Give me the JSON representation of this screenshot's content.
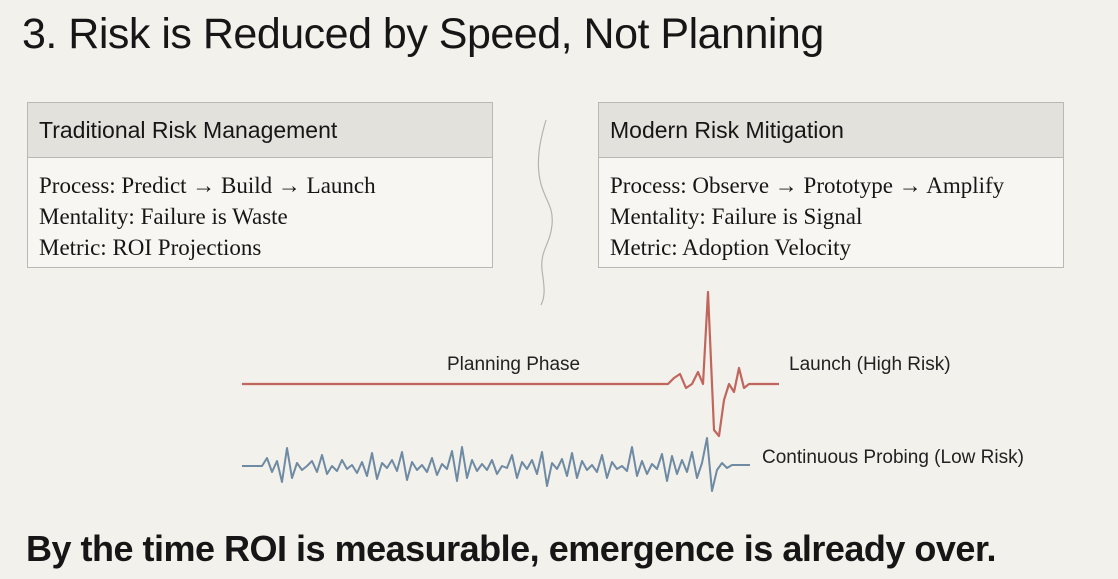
{
  "title": "3. Risk is Reduced by Speed, Not Planning",
  "panels": [
    {
      "header": "Traditional Risk Management",
      "lines": [
        "Process: Predict → Build → Launch",
        "Mentality: Failure is Waste",
        "Metric: ROI Projections"
      ]
    },
    {
      "header": "Modern Risk Mitigation",
      "lines": [
        "Process: Observe → Prototype → Amplify",
        "Mentality: Failure is Signal",
        "Metric: Adoption Velocity"
      ]
    }
  ],
  "signals": {
    "planning_label": "Planning Phase",
    "launch_label": "Launch (High Risk)",
    "probing_label": "Continuous Probing (Low Risk)",
    "red_color": "#c0665d",
    "blue_color": "#6f8aa3"
  },
  "footer": "By the time ROI is measurable, emergence is already over."
}
